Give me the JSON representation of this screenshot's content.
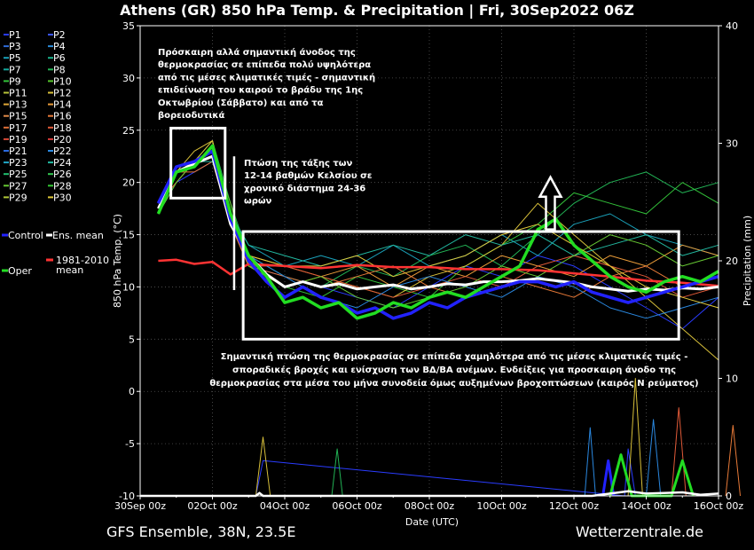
{
  "chart_data": {
    "type": "line",
    "title": "Athens  (GR)  850 hPa Temp. & Precipitation | Fri, 30Sep2022 06Z",
    "ylabel": "850 hPa Temp. (°C)",
    "y2label": "Precipitation (mm)",
    "xlabel": "Date (UTC)",
    "ylim": [
      -10,
      35
    ],
    "y2lim": [
      0,
      40
    ],
    "yticks": [
      -10,
      -5,
      0,
      5,
      10,
      15,
      20,
      25,
      30,
      35
    ],
    "y2ticks": [
      0,
      10,
      20,
      30,
      40
    ],
    "xlim": [
      0,
      16
    ],
    "x_tick_labels": [
      "30Sep 00z",
      "02Oct 00z",
      "04Oct 00z",
      "06Oct 00z",
      "08Oct 00z",
      "10Oct 00z",
      "12Oct 00z",
      "14Oct 00z",
      "16Oct 00z"
    ],
    "grid": true,
    "legend": [
      {
        "label": "P1",
        "color": "#2a3cff"
      },
      {
        "label": "P2",
        "color": "#3a55ff"
      },
      {
        "label": "P3",
        "color": "#2e6ad6"
      },
      {
        "label": "P4",
        "color": "#2a8ad8"
      },
      {
        "label": "P5",
        "color": "#1aa0b8"
      },
      {
        "label": "P6",
        "color": "#1ab08a"
      },
      {
        "label": "P7",
        "color": "#15a99e"
      },
      {
        "label": "P8",
        "color": "#22b355"
      },
      {
        "label": "P9",
        "color": "#33c23a"
      },
      {
        "label": "P10",
        "color": "#55c42a"
      },
      {
        "label": "P11",
        "color": "#b8c43a"
      },
      {
        "label": "P12",
        "color": "#d8c03a"
      },
      {
        "label": "P13",
        "color": "#e0a838"
      },
      {
        "label": "P14",
        "color": "#e89a38"
      },
      {
        "label": "P15",
        "color": "#e08a48"
      },
      {
        "label": "P16",
        "color": "#e87a38"
      },
      {
        "label": "P17",
        "color": "#e07038"
      },
      {
        "label": "P18",
        "color": "#e05a38"
      },
      {
        "label": "P19",
        "color": "#d84a38"
      },
      {
        "label": "P20",
        "color": "#d83a38"
      },
      {
        "label": "P21",
        "color": "#2a6ae0"
      },
      {
        "label": "P22",
        "color": "#2a88e0"
      },
      {
        "label": "P23",
        "color": "#22a8c8"
      },
      {
        "label": "P24",
        "color": "#22b8a0"
      },
      {
        "label": "P25",
        "color": "#22c070"
      },
      {
        "label": "P26",
        "color": "#33c850"
      },
      {
        "label": "P27",
        "color": "#66c833"
      },
      {
        "label": "P28",
        "color": "#33c833"
      },
      {
        "label": "P29",
        "color": "#b0c838"
      },
      {
        "label": "P30",
        "color": "#e0c838"
      },
      {
        "label": "Control",
        "color": "#2222ff"
      },
      {
        "label": "Ens. mean",
        "color": "#ffffff"
      },
      {
        "label": "Oper",
        "color": "#22dd22"
      },
      {
        "label": "1981-2010\nmean",
        "color": "#ff3333"
      }
    ],
    "series": [
      {
        "name": "1981-2010 mean",
        "color": "#ff3333",
        "x": [
          0.5,
          1.0,
          1.5,
          2.0,
          2.5,
          3,
          4,
          5,
          6,
          7,
          8,
          9,
          10,
          11,
          12,
          13,
          14,
          15,
          16
        ],
        "values": [
          12.5,
          12.6,
          12.2,
          12.4,
          11.2,
          12.2,
          12.0,
          11.8,
          12.1,
          11.9,
          11.9,
          11.7,
          11.7,
          11.6,
          11.3,
          11.0,
          10.6,
          10.4,
          10.1
        ]
      },
      {
        "name": "Ens. mean",
        "color": "#ffffff",
        "x": [
          0.5,
          1.0,
          1.5,
          2.0,
          2.5,
          3.0,
          3.5,
          4.0,
          4.5,
          5.0,
          5.5,
          6.0,
          6.5,
          7.0,
          7.5,
          8.0,
          8.5,
          9.0,
          9.5,
          10.0,
          10.5,
          11.0,
          11.5,
          12.0,
          12.5,
          13.0,
          13.5,
          14.0,
          14.5,
          15.0,
          15.5,
          16.0
        ],
        "values": [
          17.5,
          21.0,
          21.8,
          22.5,
          16.0,
          13.0,
          11.2,
          10.0,
          10.5,
          10.0,
          10.3,
          9.8,
          10.0,
          10.2,
          9.8,
          10.0,
          10.3,
          10.2,
          10.5,
          10.5,
          10.6,
          10.8,
          10.6,
          10.4,
          10.0,
          9.8,
          9.6,
          9.8,
          9.7,
          9.9,
          9.8,
          10.0
        ]
      },
      {
        "name": "Control",
        "color": "#2222ff",
        "x": [
          0.5,
          1.0,
          1.5,
          2.0,
          2.5,
          3.0,
          3.5,
          4.0,
          4.5,
          5.0,
          5.5,
          6.0,
          6.5,
          7.0,
          7.5,
          8.0,
          8.5,
          9.0,
          9.5,
          10.0,
          10.5,
          11.0,
          11.5,
          12.0,
          12.5,
          13.0,
          13.5,
          14.0,
          14.5,
          15.0,
          15.5,
          16.0
        ],
        "values": [
          18.0,
          21.5,
          22.0,
          23.0,
          16.5,
          12.5,
          10.5,
          9.0,
          10.0,
          9.0,
          8.5,
          7.5,
          8.0,
          7.0,
          7.5,
          8.5,
          8.0,
          9.0,
          9.5,
          10.0,
          10.5,
          10.5,
          10.0,
          10.5,
          9.5,
          9.0,
          8.5,
          9.0,
          9.5,
          10.0,
          10.5,
          11.0
        ]
      },
      {
        "name": "Oper",
        "color": "#22dd22",
        "x": [
          0.5,
          1.0,
          1.5,
          2.0,
          2.5,
          3.0,
          3.5,
          4.0,
          4.5,
          5.0,
          5.5,
          6.0,
          6.5,
          7.0,
          7.5,
          8.0,
          8.5,
          9.0,
          9.5,
          10.0,
          10.5,
          11.0,
          11.5,
          12.0,
          12.5,
          13.0,
          13.5,
          14.0,
          14.5,
          15.0,
          15.5,
          16.0
        ],
        "values": [
          17.0,
          21.0,
          21.5,
          23.5,
          17.0,
          13.0,
          11.0,
          8.5,
          9.0,
          8.0,
          8.5,
          7.0,
          7.5,
          8.5,
          8.0,
          9.0,
          9.5,
          9.0,
          10.0,
          11.0,
          12.0,
          15.5,
          16.5,
          14.0,
          12.5,
          11.0,
          10.0,
          9.5,
          10.5,
          11.0,
          10.5,
          11.5
        ]
      },
      {
        "name": "P1",
        "color": "#2a3cff",
        "x": [
          0.5,
          1,
          1.5,
          2,
          2.5,
          3,
          4,
          5,
          6,
          7,
          8,
          9,
          10,
          11,
          12,
          13,
          14,
          15,
          16
        ],
        "values": [
          17,
          20,
          21,
          22,
          16,
          12,
          11,
          10,
          9,
          8,
          10,
          12,
          11,
          13,
          12,
          10,
          8,
          6,
          9
        ]
      },
      {
        "name": "P5",
        "color": "#1aa0b8",
        "x": [
          0.5,
          1,
          1.5,
          2,
          2.5,
          3,
          4,
          5,
          6,
          7,
          8,
          9,
          10,
          11,
          12,
          13,
          14,
          15,
          16
        ],
        "values": [
          18,
          21,
          22,
          23,
          17,
          14,
          12,
          13,
          12,
          14,
          12,
          13,
          15,
          13,
          16,
          17,
          15,
          14,
          13
        ]
      },
      {
        "name": "P8",
        "color": "#22b355",
        "x": [
          0.5,
          1,
          1.5,
          2,
          2.5,
          3,
          4,
          5,
          6,
          7,
          8,
          9,
          10,
          11,
          12,
          13,
          14,
          15,
          16
        ],
        "values": [
          17,
          20,
          22,
          24,
          18,
          13,
          11,
          10,
          12,
          11,
          13,
          14,
          12,
          15,
          18,
          20,
          21,
          19,
          20
        ]
      },
      {
        "name": "P9",
        "color": "#33c23a",
        "x": [
          0.5,
          1,
          1.5,
          2,
          2.5,
          3,
          4,
          5,
          6,
          7,
          8,
          9,
          10,
          11,
          12,
          13,
          14,
          15,
          16
        ],
        "values": [
          18,
          21,
          22,
          23,
          17,
          12,
          10,
          9,
          11,
          10,
          9,
          12,
          14,
          16,
          19,
          18,
          17,
          20,
          18
        ]
      },
      {
        "name": "P12",
        "color": "#d8c03a",
        "x": [
          0.5,
          1,
          1.5,
          2,
          2.5,
          3,
          4,
          5,
          6,
          7,
          8,
          9,
          10,
          11,
          12,
          13,
          14,
          15,
          16
        ],
        "values": [
          17,
          21,
          23,
          24,
          16,
          12,
          10,
          11,
          10,
          9,
          11,
          12,
          14,
          18,
          15,
          12,
          9,
          6,
          3
        ]
      },
      {
        "name": "P14",
        "color": "#e89a38",
        "x": [
          0.5,
          1,
          1.5,
          2,
          2.5,
          3,
          4,
          5,
          6,
          7,
          8,
          9,
          10,
          11,
          12,
          13,
          14,
          15,
          16
        ],
        "values": [
          18,
          20,
          22,
          23,
          17,
          13,
          12,
          11,
          12,
          10,
          12,
          11,
          13,
          12,
          11,
          13,
          12,
          14,
          13
        ]
      },
      {
        "name": "P16",
        "color": "#e87a38",
        "x": [
          0.5,
          1,
          1.5,
          2,
          2.5,
          3,
          4,
          5,
          6,
          7,
          8,
          9,
          10,
          11,
          12,
          13,
          14,
          15,
          16
        ],
        "values": [
          17,
          21,
          21,
          22,
          16,
          12,
          11,
          10,
          11,
          12,
          10,
          9,
          11,
          10,
          9,
          11,
          12,
          10,
          11
        ]
      },
      {
        "name": "P18",
        "color": "#e05a38",
        "x": [
          0.5,
          1,
          1.5,
          2,
          2.5,
          3,
          4,
          5,
          6,
          7,
          8,
          9,
          10,
          11,
          12,
          13,
          14,
          15,
          16
        ],
        "values": [
          18,
          20,
          22,
          23,
          17,
          12,
          12,
          11,
          10,
          9,
          10,
          11,
          10,
          12,
          13,
          12,
          11,
          9,
          10
        ]
      },
      {
        "name": "P22",
        "color": "#2a88e0",
        "x": [
          0.5,
          1,
          1.5,
          2,
          2.5,
          3,
          4,
          5,
          6,
          7,
          8,
          9,
          10,
          11,
          12,
          13,
          14,
          15,
          16
        ],
        "values": [
          17,
          21,
          22,
          23,
          16,
          13,
          11,
          9,
          8,
          10,
          11,
          10,
          9,
          11,
          10,
          8,
          7,
          8,
          9
        ]
      },
      {
        "name": "P24",
        "color": "#22b8a0",
        "x": [
          0.5,
          1,
          1.5,
          2,
          2.5,
          3,
          4,
          5,
          6,
          7,
          8,
          9,
          10,
          11,
          12,
          13,
          14,
          15,
          16
        ],
        "values": [
          18,
          21,
          22,
          22,
          17,
          14,
          13,
          12,
          13,
          14,
          13,
          15,
          14,
          15,
          13,
          14,
          15,
          13,
          14
        ]
      },
      {
        "name": "P27",
        "color": "#66c833",
        "x": [
          0.5,
          1,
          1.5,
          2,
          2.5,
          3,
          4,
          5,
          6,
          7,
          8,
          9,
          10,
          11,
          12,
          13,
          14,
          15,
          16
        ],
        "values": [
          17,
          20,
          22,
          23,
          18,
          12,
          10,
          11,
          9,
          8,
          9,
          10,
          12,
          11,
          13,
          15,
          14,
          12,
          13
        ]
      },
      {
        "name": "P30",
        "color": "#e0c838",
        "x": [
          0.5,
          1,
          1.5,
          2,
          2.5,
          3,
          4,
          5,
          6,
          7,
          8,
          9,
          10,
          11,
          12,
          13,
          14,
          15,
          16
        ],
        "values": [
          18,
          21,
          22,
          24,
          17,
          13,
          12,
          12,
          13,
          11,
          12,
          13,
          15,
          16,
          14,
          12,
          10,
          9,
          8
        ]
      }
    ],
    "precipitation": [
      {
        "name": "P1",
        "color": "#2a3cff",
        "x": [
          3.2,
          3.4,
          13.4,
          13.5,
          13.7
        ],
        "values": [
          0,
          3,
          0,
          4,
          0
        ]
      },
      {
        "name": "P12",
        "color": "#d8c03a",
        "x": [
          3.2,
          3.4,
          3.6,
          13.5,
          13.7,
          13.9
        ],
        "values": [
          0,
          5,
          0,
          0,
          10,
          0
        ]
      },
      {
        "name": "P18",
        "color": "#e05a38",
        "x": [
          14.7,
          14.9,
          15.1
        ],
        "values": [
          0,
          7.5,
          0
        ]
      },
      {
        "name": "P22",
        "color": "#2a88e0",
        "x": [
          12.3,
          12.45,
          12.6,
          14.0,
          14.2,
          14.4
        ],
        "values": [
          0,
          5.8,
          0,
          0,
          6.5,
          0
        ]
      },
      {
        "name": "P8",
        "color": "#22b355",
        "x": [
          5.3,
          5.45,
          5.6
        ],
        "values": [
          0,
          4,
          0
        ]
      },
      {
        "name": "P16",
        "color": "#e87a38",
        "x": [
          16.2,
          16.4,
          16.6
        ],
        "values": [
          0,
          6,
          0
        ]
      }
    ],
    "precipitation_main": [
      {
        "name": "Control",
        "color": "#2222ff",
        "x": [
          12.8,
          12.95,
          13.1
        ],
        "values": [
          0,
          3,
          0
        ]
      },
      {
        "name": "Oper",
        "color": "#22dd22",
        "x": [
          13.0,
          13.3,
          13.6,
          14.7,
          15.0,
          15.3
        ],
        "values": [
          0,
          3.5,
          0,
          0,
          3,
          0
        ]
      },
      {
        "name": "Ens. mean",
        "color": "#ffffff",
        "x": [
          0,
          3.2,
          3.3,
          3.4,
          6,
          12.5,
          13,
          13.5,
          14,
          15,
          15.5,
          16
        ],
        "values": [
          0,
          0,
          0.25,
          0,
          0,
          0,
          0.2,
          0.4,
          0.2,
          0.3,
          0.1,
          0.2
        ]
      }
    ],
    "annotations": {
      "a1": [
        "Πρόσκαιρη αλλά σημαντική άνοδος της",
        "θερμοκρασίας σε επίπεδα πολύ υψηλότερα",
        "από τις μέσες κλιματικές τιμές - σημαντική",
        "επιδείνωση του καιρού το βράδυ της 1ης",
        "Οκτωβρίου (Σάββατο) και από τα",
        "βορειοδυτικά"
      ],
      "a2": [
        "Πτώση της τάξης των",
        "12-14 βαθμών Κελσίου σε",
        "χρονικό διάστημα 24-36",
        "ωρών"
      ],
      "a3": [
        "Σημαντική πτώση της θερμοκρασίας σε επίπεδα χαμηλότερα από τις μέσες κλιματικές τιμές -",
        "σποραδικές βροχές και ενίσχυση των ΒΔ/ΒΑ ανέμων. Ενδείξεις για προσκαιρη άνοδο της",
        "θερμοκρασίας στα μέσα του μήνα συνοδεία όμως αυξημένων βροχοπτώσεων (καιρός Ν ρεύματος)"
      ]
    }
  },
  "footer": {
    "left": "GFS Ensemble, 38N, 23.5E",
    "right": "Wetterzentrale.de"
  }
}
